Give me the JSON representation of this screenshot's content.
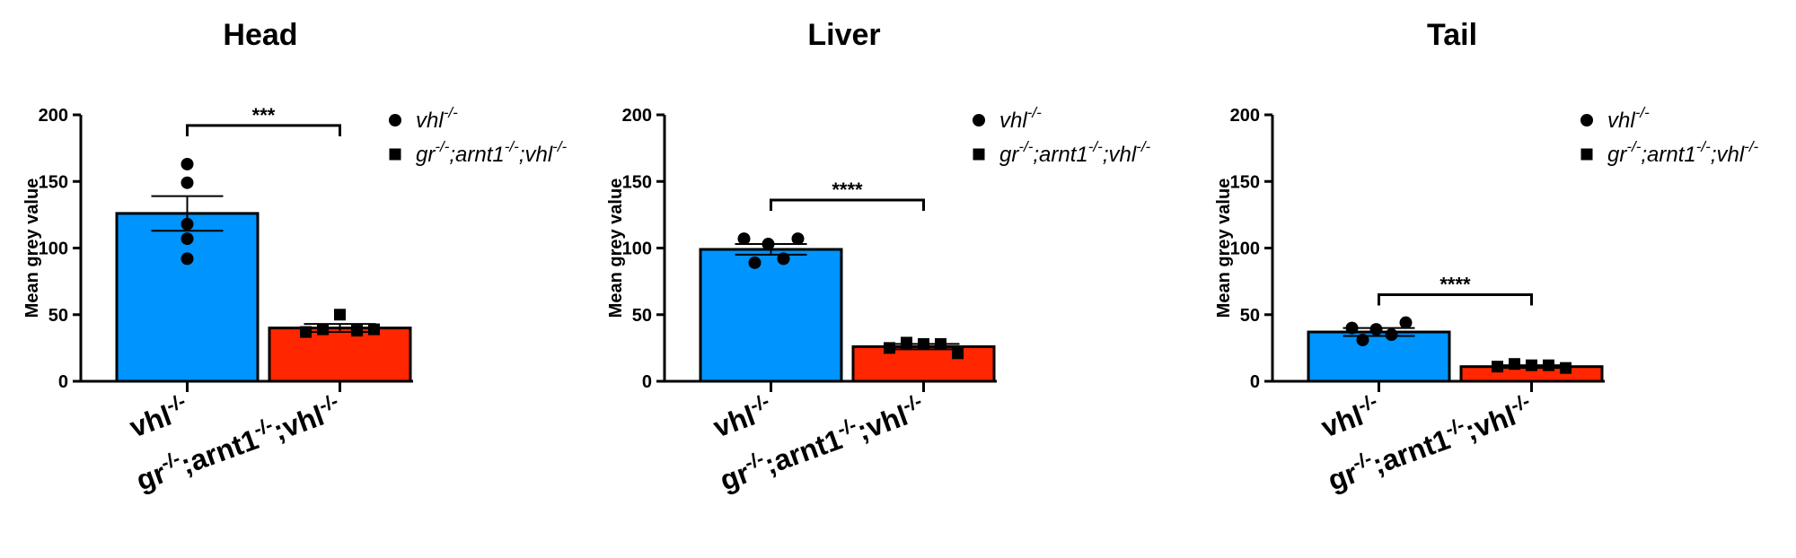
{
  "legend": {
    "series": [
      {
        "label": "vhl",
        "sup": "-/-",
        "marker": "circle"
      },
      {
        "label_parts": [
          "gr",
          "-/-",
          ";arnt1",
          "-/-",
          ";vhl",
          "-/-"
        ],
        "marker": "square"
      }
    ]
  },
  "categories": [
    {
      "parts": [
        "vhl",
        "-/-"
      ]
    },
    {
      "parts": [
        "gr",
        "-/-",
        ";arnt1",
        "-/-",
        ";vhl",
        "-/-"
      ]
    }
  ],
  "colors": {
    "bar1": "#0094FF",
    "bar2": "#FF2600",
    "ink": "#000000"
  },
  "chart_data": [
    {
      "type": "bar",
      "title": "Head",
      "ylabel": "Mean grey value",
      "ylim": [
        0,
        200
      ],
      "yticks": [
        0,
        50,
        100,
        150,
        200
      ],
      "series": [
        {
          "category": "vhl-/-",
          "mean": 126,
          "sem": 13,
          "points": [
            163,
            149,
            118,
            107,
            92
          ],
          "marker": "circle",
          "color": "#0094FF"
        },
        {
          "category": "gr-/-;arnt1-/-;vhl-/-",
          "mean": 40,
          "sem": 3,
          "points": [
            37,
            39,
            50,
            38,
            39
          ],
          "marker": "square",
          "color": "#FF2600"
        }
      ],
      "significance": {
        "text": "***",
        "between": [
          0,
          1
        ],
        "y": 192
      }
    },
    {
      "type": "bar",
      "title": "Liver",
      "ylabel": "Mean grey value",
      "ylim": [
        0,
        200
      ],
      "yticks": [
        0,
        50,
        100,
        150,
        200
      ],
      "series": [
        {
          "category": "vhl-/-",
          "mean": 99,
          "sem": 4,
          "points": [
            107,
            89,
            103,
            92,
            107
          ],
          "marker": "circle",
          "color": "#0094FF"
        },
        {
          "category": "gr-/-;arnt1-/-;vhl-/-",
          "mean": 26,
          "sem": 2,
          "points": [
            25,
            29,
            28,
            28,
            21
          ],
          "marker": "square",
          "color": "#FF2600"
        }
      ],
      "significance": {
        "text": "****",
        "between": [
          0,
          1
        ],
        "y": 136
      }
    },
    {
      "type": "bar",
      "title": "Tail",
      "ylabel": "Mean grey value",
      "ylim": [
        0,
        200
      ],
      "yticks": [
        0,
        50,
        100,
        150,
        200
      ],
      "series": [
        {
          "category": "vhl-/-",
          "mean": 37,
          "sem": 3,
          "points": [
            40,
            31,
            39,
            35,
            44
          ],
          "marker": "circle",
          "color": "#0094FF"
        },
        {
          "category": "gr-/-;arnt1-/-;vhl-/-",
          "mean": 11,
          "sem": 1,
          "points": [
            11,
            13,
            12,
            12,
            10
          ],
          "marker": "square",
          "color": "#FF2600"
        }
      ],
      "significance": {
        "text": "****",
        "between": [
          0,
          1
        ],
        "y": 65
      }
    }
  ]
}
